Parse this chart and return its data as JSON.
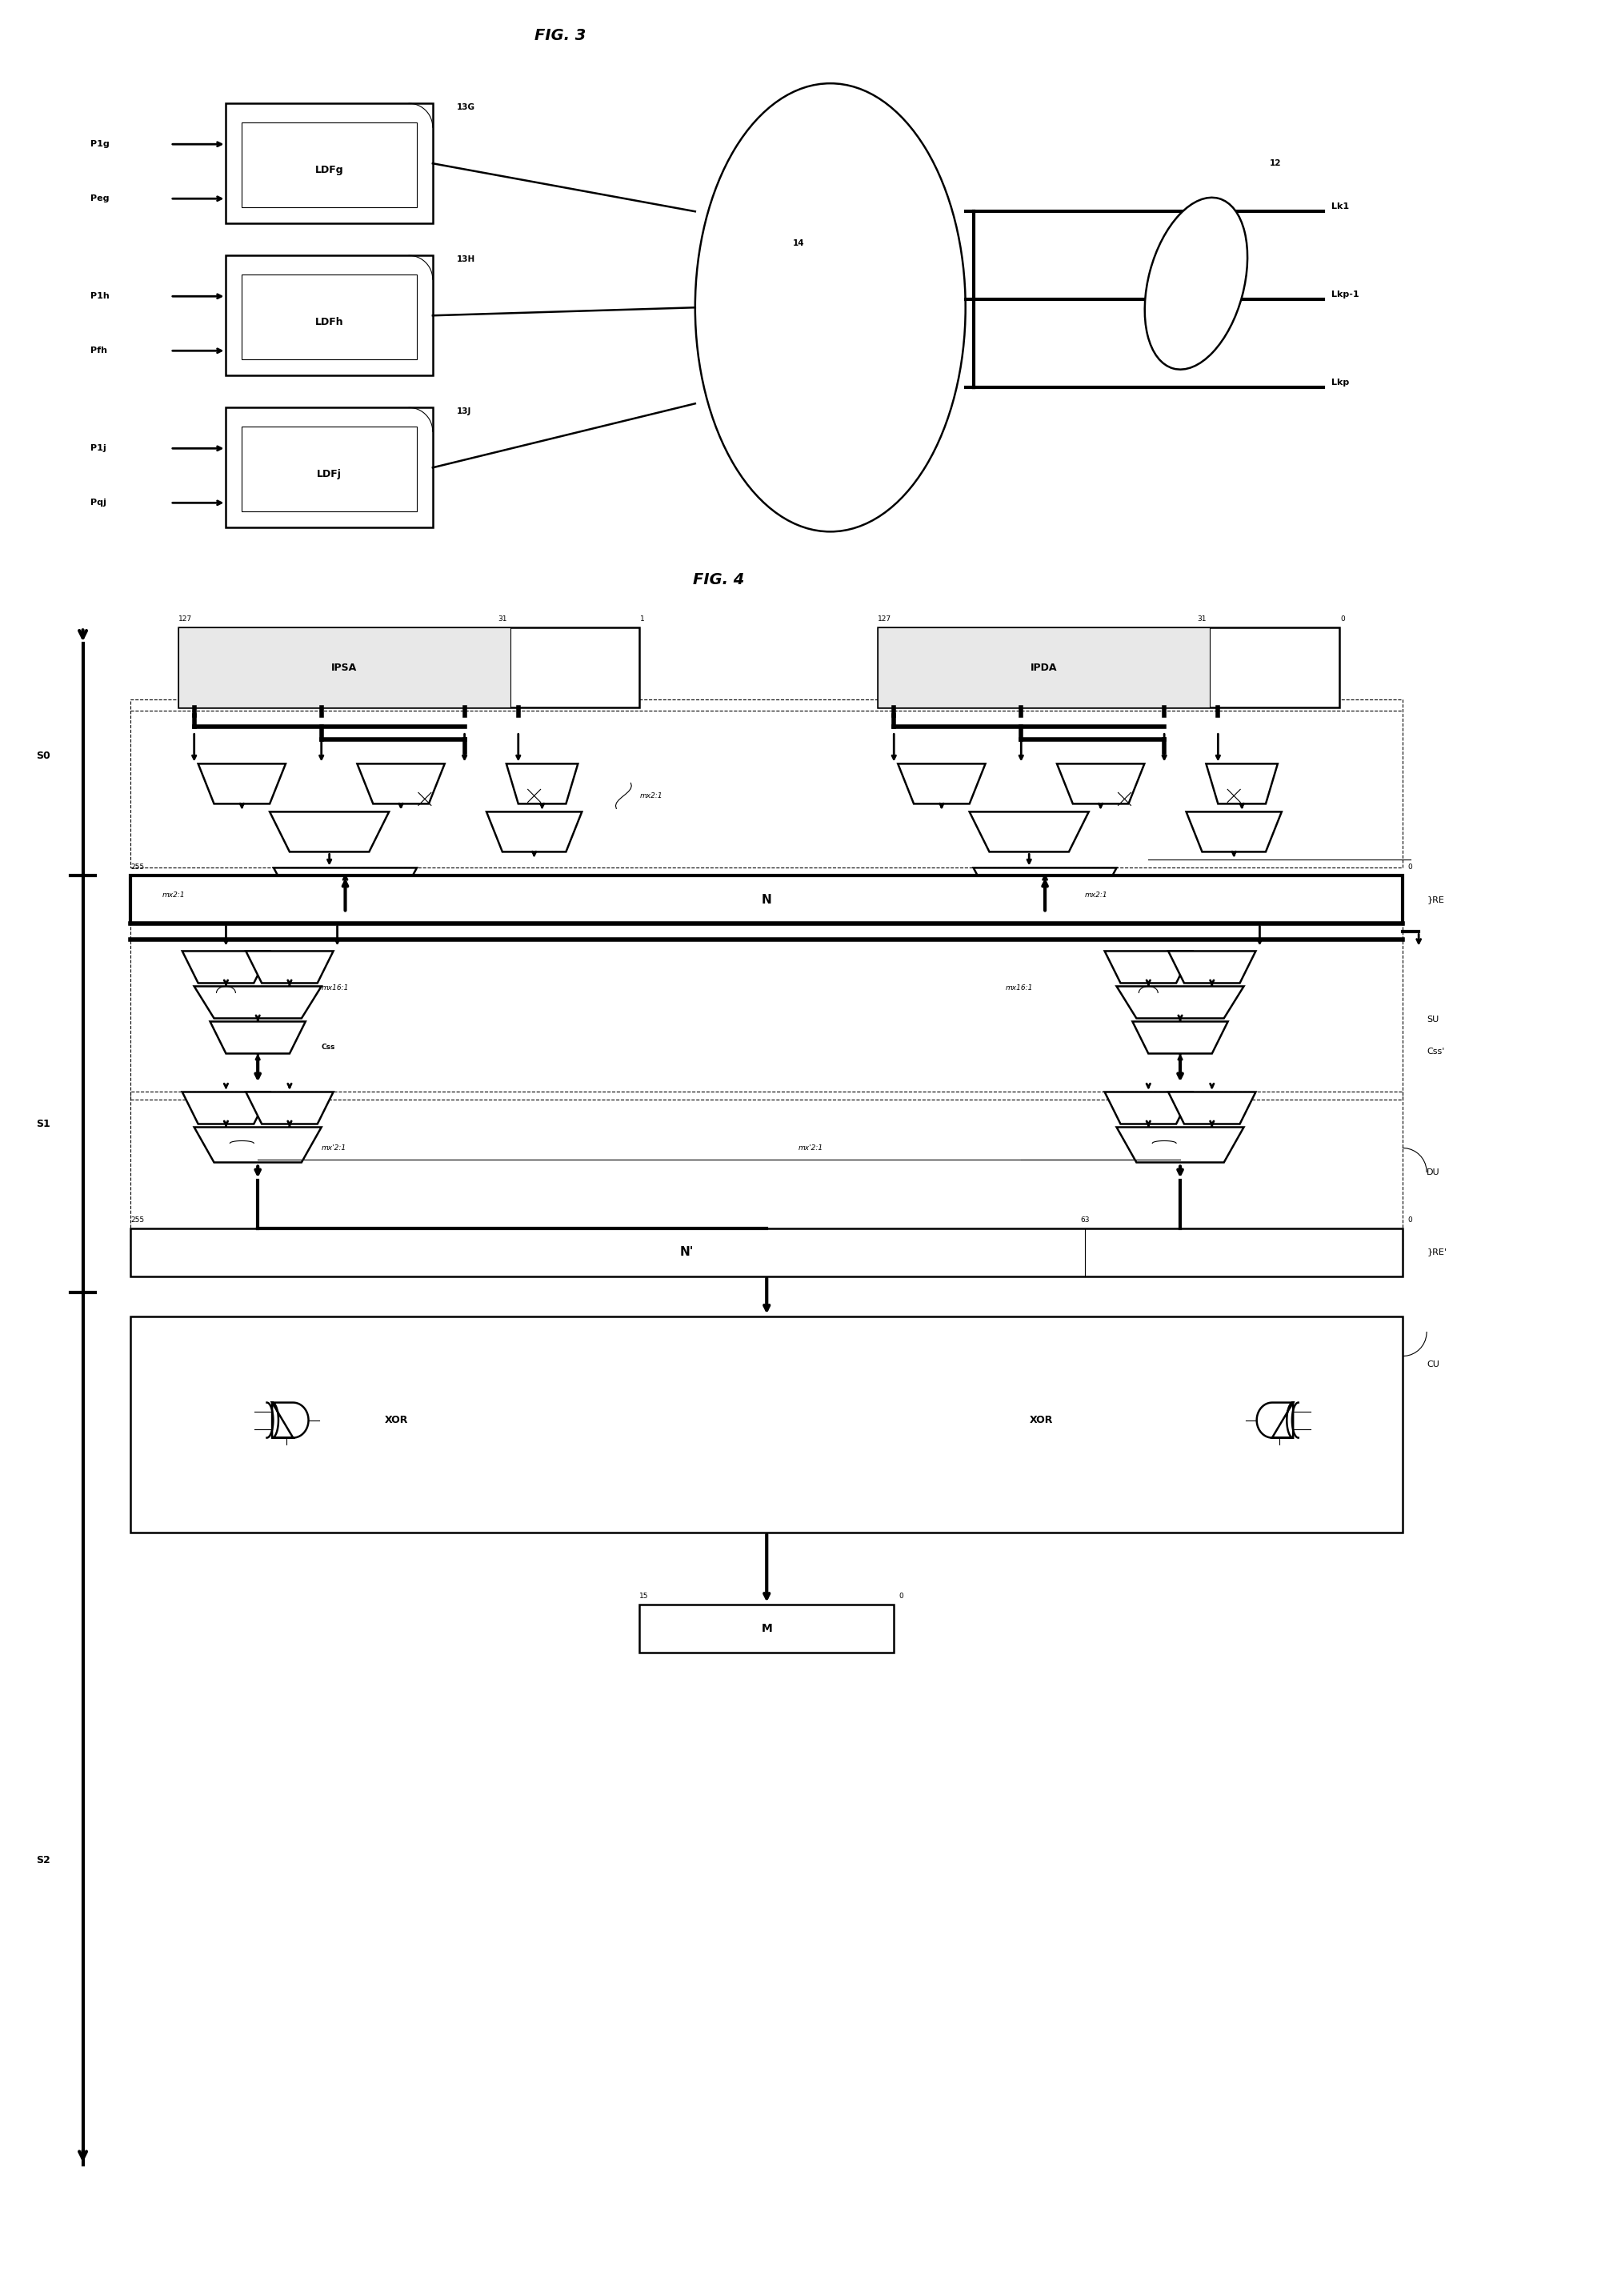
{
  "fig_width": 19.96,
  "fig_height": 28.69,
  "background": "white",
  "fig3_title": "FIG. 3",
  "fig4_title": "FIG. 4",
  "ldf_boxes": [
    {
      "label": "LDFg",
      "p1": "P1g",
      "p2": "Peg",
      "tag": "13G"
    },
    {
      "label": "LDFh",
      "p1": "P1h",
      "p2": "Pfh",
      "tag": "13H"
    },
    {
      "label": "LDFj",
      "p1": "P1j",
      "p2": "Pqj",
      "tag": "13J"
    }
  ],
  "links": [
    "Lk1",
    "Lkp-1",
    "Lkp"
  ],
  "stage_labels": [
    "S0",
    "S1",
    "S2"
  ],
  "node14": "14",
  "node12": "12"
}
